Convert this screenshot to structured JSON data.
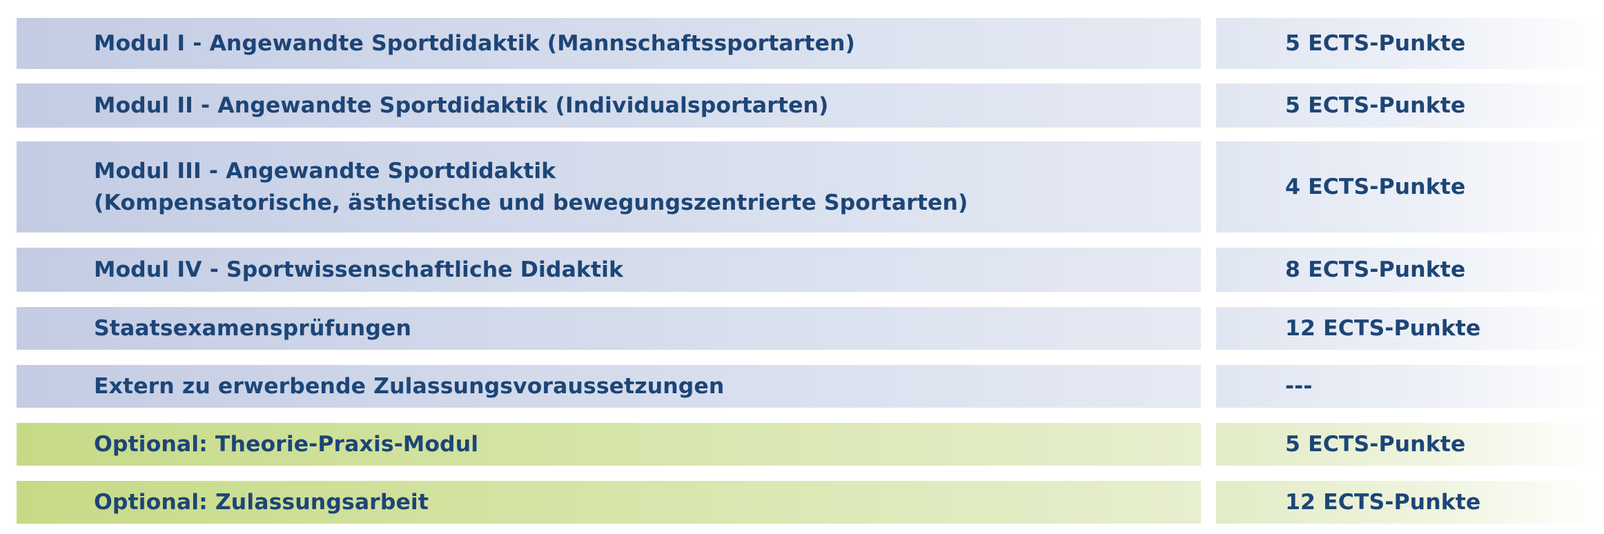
{
  "rows": [
    {
      "module": "Modul I - Angewandte Sportdidaktik (Mannschaftssportarten)",
      "ects": "5 ECTS-Punkte",
      "style": "blue"
    },
    {
      "module": "Modul II - Angewandte Sportdidaktik (Individualsportarten)",
      "ects": "5 ECTS-Punkte",
      "style": "blue"
    },
    {
      "module_lines": [
        "Modul III - Angewandte Sportdidaktik",
        "(Kompensatorische, ästhetische und bewegungszentrierte Sportarten)"
      ],
      "ects": "4 ECTS-Punkte",
      "style": "blue"
    },
    {
      "module": "Modul IV - Sportwissenschaftliche Didaktik",
      "ects": "8 ECTS-Punkte",
      "style": "blue"
    },
    {
      "module": "Staatsexamensprüfungen",
      "ects": "12 ECTS-Punkte",
      "style": "blue"
    },
    {
      "module": "Extern zu erwerbende Zulassungsvoraussetzungen",
      "ects": "---",
      "style": "blue"
    },
    {
      "module": "Optional: Theorie-Praxis-Modul",
      "ects": "5 ECTS-Punkte",
      "style": "green"
    },
    {
      "module": "Optional: Zulassungsarbeit",
      "ects": "12 ECTS-Punkte",
      "style": "green"
    }
  ],
  "colors": {
    "text": "#1d4577",
    "blue_row": "#c4cce4",
    "green_row": "#c6da86"
  }
}
